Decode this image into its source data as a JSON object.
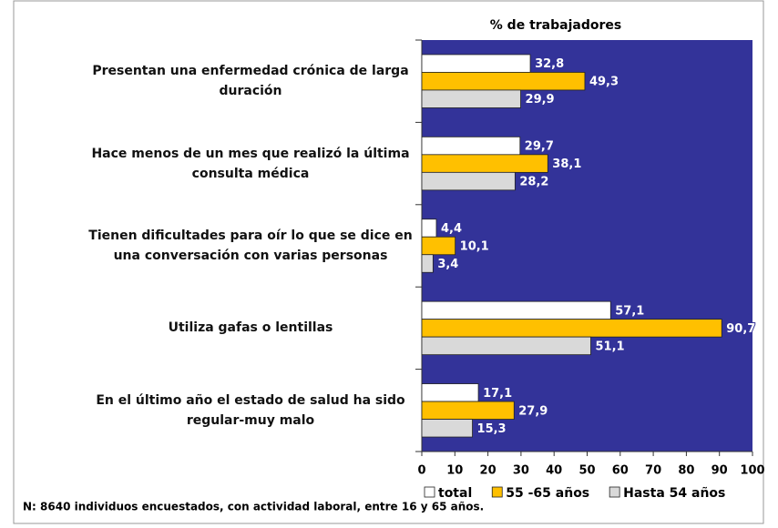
{
  "chart_data": {
    "type": "bar",
    "orientation": "horizontal",
    "title": "% de trabajadores",
    "categories": [
      "Presentan una enfermedad crónica de larga duración",
      "Hace menos de un mes que realizó la última consulta médica",
      "Tienen dificultades para  oír lo que se dice en una conversación con varias personas",
      "Utiliza gafas o lentillas",
      "En el último año el estado de salud ha sido regular-muy malo"
    ],
    "series": [
      {
        "name": "total",
        "color": "#ffffff",
        "values": [
          32.8,
          29.7,
          4.4,
          57.1,
          17.1
        ],
        "value_labels": [
          "32,8",
          "29,7",
          "4,4",
          "57,1",
          "17,1"
        ]
      },
      {
        "name": "55 -65 años",
        "color": "#ffc000",
        "values": [
          49.3,
          38.1,
          10.1,
          90.7,
          27.9
        ],
        "value_labels": [
          "49,3",
          "38,1",
          "10,1",
          "90,7",
          "27,9"
        ]
      },
      {
        "name": "Hasta 54 años",
        "color": "#d9d9d9",
        "values": [
          29.9,
          28.2,
          3.4,
          51.1,
          15.3
        ],
        "value_labels": [
          "29,9",
          "28,2",
          "3,4",
          "51,1",
          "15,3"
        ]
      }
    ],
    "xlim": [
      0,
      100
    ],
    "xticks": [
      0,
      10,
      20,
      30,
      40,
      50,
      60,
      70,
      80,
      90,
      100
    ],
    "plot_background": "#333399",
    "note": "N: 8640 individuos encuestados, con actividad laboral, entre 16 y 65 años."
  }
}
